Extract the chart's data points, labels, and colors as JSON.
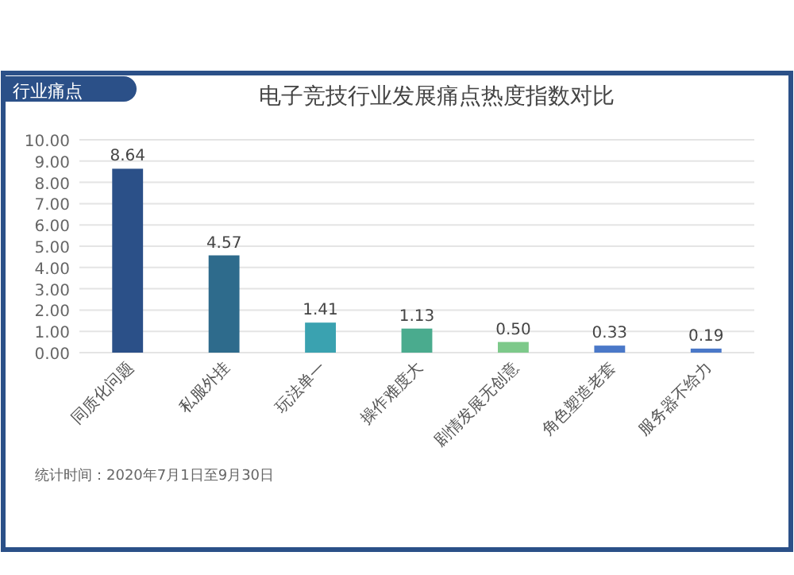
{
  "chart_data": {
    "type": "bar",
    "title": "电子竞技行业发展痛点热度指数对比",
    "subtitle": "行业痛点",
    "categories": [
      "同质化问题",
      "私服外挂",
      "玩法单一",
      "操作难度大",
      "剧情发展无创意",
      "角色塑造老套",
      "服务器不给力"
    ],
    "values": [
      8.64,
      4.57,
      1.41,
      1.13,
      0.5,
      0.33,
      0.19
    ],
    "colors": [
      "#2b5088",
      "#2e6b8c",
      "#3aa2b0",
      "#4aab8e",
      "#7dc98a",
      "#4a78c8",
      "#4a78c8"
    ],
    "ylim": [
      0,
      10
    ],
    "yticks": [
      {
        "value": 0,
        "label": "0.00"
      },
      {
        "value": 1,
        "label": "1.00"
      },
      {
        "value": 2,
        "label": "2.00"
      },
      {
        "value": 3,
        "label": "3.00"
      },
      {
        "value": 4,
        "label": "4.00"
      },
      {
        "value": 5,
        "label": "5.00"
      },
      {
        "value": 6,
        "label": "6.00"
      },
      {
        "value": 7,
        "label": "7.00"
      },
      {
        "value": 8,
        "label": "8.00"
      },
      {
        "value": 9,
        "label": "9.00"
      },
      {
        "value": 10,
        "label": "10.00"
      }
    ],
    "value_labels": [
      "8.64",
      "4.57",
      "1.41",
      "1.13",
      "0.50",
      "0.33",
      "0.19"
    ],
    "grid": "y",
    "annotations": [
      "统计时间：2020年7月1日至9月30日"
    ]
  }
}
